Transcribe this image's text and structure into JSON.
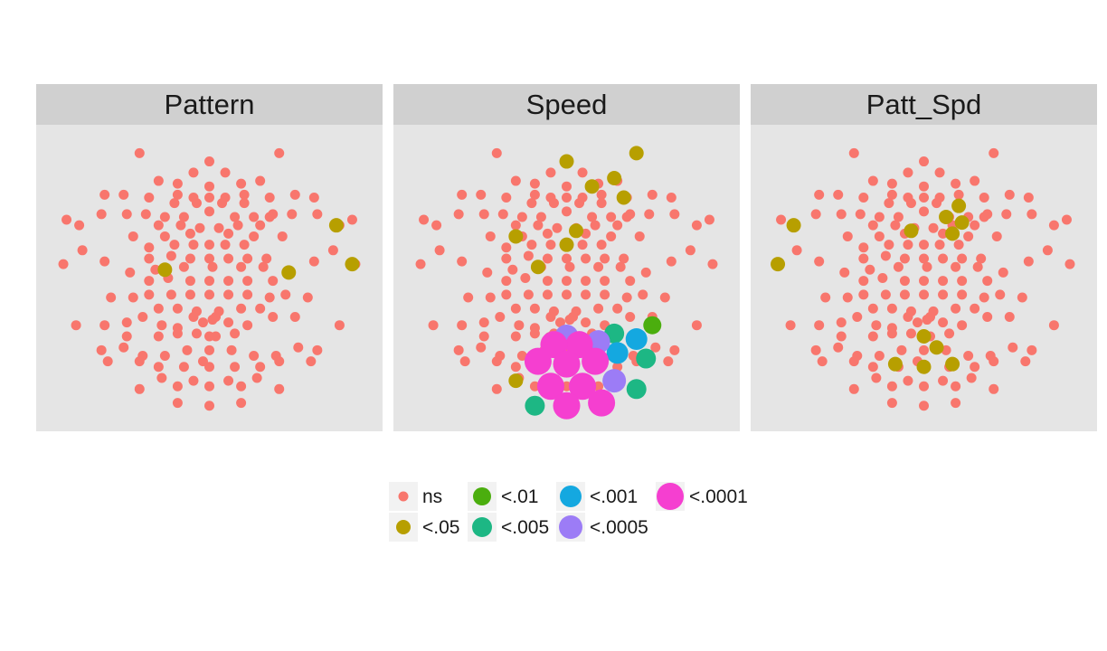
{
  "chart_data": {
    "type": "scatter",
    "facets": [
      "Pattern",
      "Speed",
      "Patt_Spd"
    ],
    "legend": {
      "levels": [
        "ns",
        "<.05",
        "<.01",
        "<.005",
        "<.001",
        "<.0005",
        "<.0001"
      ],
      "colors": {
        "ns": "#F8766D",
        "<.05": "#B79F00",
        "<.01": "#4BAE0E",
        "<.005": "#1DB784",
        "<.001": "#14A8E0",
        "<.0005": "#9C7CF6",
        "<.0001": "#F53FD0"
      },
      "position": "bottom"
    },
    "panel_background": "#e5e5e5",
    "strip_background": "#d0d0d0",
    "xlim": [
      0,
      100
    ],
    "ylim": [
      0,
      100
    ],
    "sensors": [
      [
        28,
        95
      ],
      [
        72,
        95
      ],
      [
        50,
        92
      ],
      [
        45,
        88
      ],
      [
        55,
        88
      ],
      [
        34,
        85
      ],
      [
        66,
        85
      ],
      [
        40,
        84
      ],
      [
        60,
        84
      ],
      [
        50,
        83
      ],
      [
        17,
        80
      ],
      [
        23,
        80
      ],
      [
        31,
        79
      ],
      [
        40,
        80
      ],
      [
        45,
        79
      ],
      [
        50,
        79
      ],
      [
        55,
        79
      ],
      [
        61,
        80
      ],
      [
        69,
        79
      ],
      [
        77,
        80
      ],
      [
        83,
        79
      ],
      [
        39,
        77
      ],
      [
        46,
        77
      ],
      [
        54,
        77
      ],
      [
        61,
        77
      ],
      [
        16,
        73
      ],
      [
        24,
        73
      ],
      [
        30,
        73
      ],
      [
        36,
        72
      ],
      [
        42,
        72
      ],
      [
        50,
        74
      ],
      [
        58,
        72
      ],
      [
        64,
        72
      ],
      [
        70,
        73
      ],
      [
        76,
        73
      ],
      [
        84,
        73
      ],
      [
        5,
        71
      ],
      [
        95,
        71
      ],
      [
        9,
        69
      ],
      [
        91,
        69
      ],
      [
        34,
        69
      ],
      [
        41,
        69
      ],
      [
        47,
        68
      ],
      [
        53,
        68
      ],
      [
        59,
        69
      ],
      [
        66,
        69
      ],
      [
        69,
        72
      ],
      [
        26,
        65
      ],
      [
        36,
        65
      ],
      [
        44,
        66
      ],
      [
        56,
        66
      ],
      [
        64,
        65
      ],
      [
        73,
        65
      ],
      [
        31,
        61
      ],
      [
        39,
        62
      ],
      [
        45,
        62
      ],
      [
        50,
        62
      ],
      [
        55,
        62
      ],
      [
        61,
        62
      ],
      [
        10,
        60
      ],
      [
        89,
        60
      ],
      [
        4,
        55
      ],
      [
        96,
        55
      ],
      [
        17,
        56
      ],
      [
        83,
        56
      ],
      [
        31,
        57
      ],
      [
        38,
        58
      ],
      [
        44,
        57
      ],
      [
        50,
        57
      ],
      [
        56,
        57
      ],
      [
        62,
        57
      ],
      [
        68,
        57
      ],
      [
        25,
        52
      ],
      [
        33,
        53
      ],
      [
        42,
        54
      ],
      [
        51,
        54
      ],
      [
        60,
        54
      ],
      [
        67,
        54
      ],
      [
        75,
        52
      ],
      [
        31,
        49
      ],
      [
        37,
        50
      ],
      [
        44,
        49
      ],
      [
        50,
        49
      ],
      [
        56,
        49
      ],
      [
        62,
        49
      ],
      [
        70,
        49
      ],
      [
        19,
        43
      ],
      [
        26,
        43
      ],
      [
        31,
        44
      ],
      [
        38,
        44
      ],
      [
        44,
        44
      ],
      [
        50,
        44
      ],
      [
        56,
        44
      ],
      [
        62,
        44
      ],
      [
        69,
        43
      ],
      [
        74,
        44
      ],
      [
        81,
        43
      ],
      [
        34,
        39
      ],
      [
        40,
        39
      ],
      [
        46,
        38
      ],
      [
        53,
        38
      ],
      [
        60,
        39
      ],
      [
        66,
        39
      ],
      [
        29,
        36
      ],
      [
        45,
        36
      ],
      [
        52,
        36
      ],
      [
        70,
        36
      ],
      [
        77,
        36
      ],
      [
        17,
        33
      ],
      [
        24,
        34
      ],
      [
        35,
        33
      ],
      [
        40,
        32
      ],
      [
        48,
        34
      ],
      [
        56,
        34
      ],
      [
        62,
        33
      ],
      [
        8,
        33
      ],
      [
        91,
        33
      ],
      [
        34,
        29
      ],
      [
        40,
        30
      ],
      [
        46,
        30
      ],
      [
        52,
        29
      ],
      [
        58,
        30
      ],
      [
        24,
        29
      ],
      [
        50,
        29
      ],
      [
        16,
        24
      ],
      [
        23,
        25
      ],
      [
        29,
        22
      ],
      [
        36,
        22
      ],
      [
        43,
        24
      ],
      [
        50,
        24
      ],
      [
        57,
        24
      ],
      [
        64,
        22
      ],
      [
        71,
        22
      ],
      [
        78,
        25
      ],
      [
        84,
        24
      ],
      [
        18,
        20
      ],
      [
        28,
        20
      ],
      [
        34,
        18
      ],
      [
        42,
        18
      ],
      [
        58,
        18
      ],
      [
        66,
        18
      ],
      [
        72,
        20
      ],
      [
        82,
        20
      ],
      [
        35,
        14
      ],
      [
        45,
        13
      ],
      [
        56,
        13
      ],
      [
        65,
        14
      ],
      [
        28,
        10
      ],
      [
        40,
        11
      ],
      [
        50,
        11
      ],
      [
        60,
        11
      ],
      [
        72,
        10
      ],
      [
        40,
        5
      ],
      [
        50,
        4
      ],
      [
        60,
        5
      ],
      [
        48,
        20
      ],
      [
        50,
        18
      ],
      [
        51,
        35
      ]
    ],
    "series": [
      {
        "name": "Pattern",
        "highlights": [
          {
            "xy": [
              90,
              69
            ],
            "level": "<.05"
          },
          {
            "xy": [
              95,
              55
            ],
            "level": "<.05"
          },
          {
            "xy": [
              36,
              53
            ],
            "level": "<.05"
          },
          {
            "xy": [
              75,
              52
            ],
            "level": "<.05"
          }
        ]
      },
      {
        "name": "Speed",
        "highlights": [
          {
            "xy": [
              72,
              95
            ],
            "level": "<.05"
          },
          {
            "xy": [
              50,
              92
            ],
            "level": "<.05"
          },
          {
            "xy": [
              65,
              86
            ],
            "level": "<.05"
          },
          {
            "xy": [
              58,
              83
            ],
            "level": "<.05"
          },
          {
            "xy": [
              68,
              79
            ],
            "level": "<.05"
          },
          {
            "xy": [
              53,
              67
            ],
            "level": "<.05"
          },
          {
            "xy": [
              34,
              65
            ],
            "level": "<.05"
          },
          {
            "xy": [
              50,
              62
            ],
            "level": "<.05"
          },
          {
            "xy": [
              41,
              54
            ],
            "level": "<.05"
          },
          {
            "xy": [
              45,
              28
            ],
            "level": "<.05"
          },
          {
            "xy": [
              34,
              13
            ],
            "level": "<.05"
          },
          {
            "xy": [
              77,
              33
            ],
            "level": "<.01"
          },
          {
            "xy": [
              65,
              30
            ],
            "level": "<.005"
          },
          {
            "xy": [
              75,
              21
            ],
            "level": "<.005"
          },
          {
            "xy": [
              72,
              10
            ],
            "level": "<.005"
          },
          {
            "xy": [
              40,
              4
            ],
            "level": "<.005"
          },
          {
            "xy": [
              72,
              28
            ],
            "level": "<.001"
          },
          {
            "xy": [
              66,
              23
            ],
            "level": "<.001"
          },
          {
            "xy": [
              50,
              29
            ],
            "level": "<.0005"
          },
          {
            "xy": [
              60,
              27
            ],
            "level": "<.0005"
          },
          {
            "xy": [
              65,
              13
            ],
            "level": "<.0005"
          },
          {
            "xy": [
              54,
              26
            ],
            "level": "<.0001"
          },
          {
            "xy": [
              46,
              26
            ],
            "level": "<.0001"
          },
          {
            "xy": [
              41,
              20
            ],
            "level": "<.0001"
          },
          {
            "xy": [
              50,
              19
            ],
            "level": "<.0001"
          },
          {
            "xy": [
              59,
              20
            ],
            "level": "<.0001"
          },
          {
            "xy": [
              45,
              11
            ],
            "level": "<.0001"
          },
          {
            "xy": [
              55,
              11
            ],
            "level": "<.0001"
          },
          {
            "xy": [
              50,
              4
            ],
            "level": "<.0001"
          },
          {
            "xy": [
              61,
              5
            ],
            "level": "<.0001"
          }
        ]
      },
      {
        "name": "Patt_Spd",
        "highlights": [
          {
            "xy": [
              9,
              69
            ],
            "level": "<.05"
          },
          {
            "xy": [
              4,
              55
            ],
            "level": "<.05"
          },
          {
            "xy": [
              61,
              76
            ],
            "level": "<.05"
          },
          {
            "xy": [
              57,
              72
            ],
            "level": "<.05"
          },
          {
            "xy": [
              62,
              70
            ],
            "level": "<.05"
          },
          {
            "xy": [
              46,
              67
            ],
            "level": "<.05"
          },
          {
            "xy": [
              59,
              66
            ],
            "level": "<.05"
          },
          {
            "xy": [
              50,
              29
            ],
            "level": "<.05"
          },
          {
            "xy": [
              54,
              25
            ],
            "level": "<.05"
          },
          {
            "xy": [
              41,
              19
            ],
            "level": "<.05"
          },
          {
            "xy": [
              50,
              18
            ],
            "level": "<.05"
          },
          {
            "xy": [
              59,
              19
            ],
            "level": "<.05"
          }
        ]
      }
    ]
  }
}
